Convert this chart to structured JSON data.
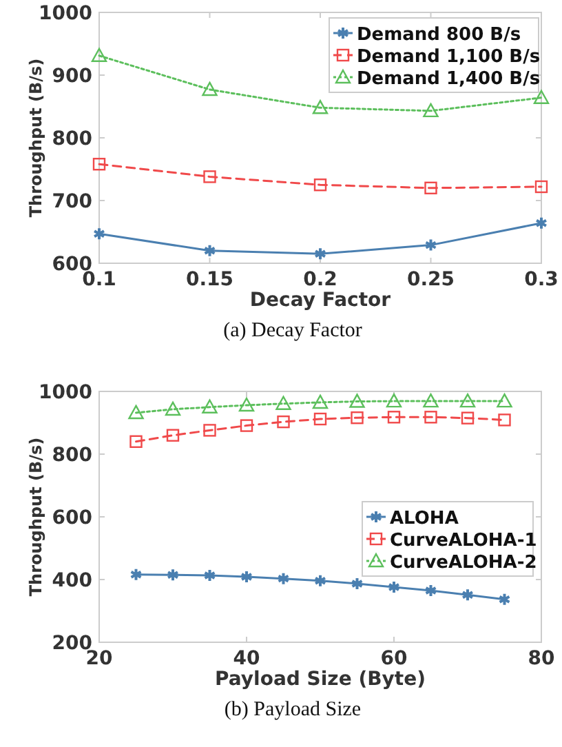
{
  "chart_data": [
    {
      "type": "line",
      "xlabel": "Decay Factor",
      "ylabel": "Throughput (B/s)",
      "x": [
        0.1,
        0.15,
        0.2,
        0.25,
        0.3
      ],
      "xlim": [
        0.1,
        0.3
      ],
      "xticks": [
        0.1,
        0.15,
        0.2,
        0.25,
        0.3
      ],
      "ylim": [
        600,
        1000
      ],
      "yticks": [
        600,
        700,
        800,
        900,
        1000
      ],
      "legend": "top right",
      "annotations": [
        "(a) Decay Factor"
      ],
      "series": [
        {
          "name": "Demand 800 B/s",
          "color": "#4a7fb0",
          "marker": "cross",
          "line_style": "solid",
          "values": [
            647,
            620,
            615,
            629,
            664
          ]
        },
        {
          "name": "Demand 1,100 B/s",
          "color": "#f0494a",
          "marker": "square",
          "line_style": "dashed",
          "values": [
            758,
            738,
            725,
            720,
            722
          ]
        },
        {
          "name": "Demand 1,400 B/s",
          "color": "#5cbf5c",
          "marker": "triangle",
          "line_style": "dotted",
          "values": [
            931,
            877,
            848,
            843,
            864
          ]
        }
      ]
    },
    {
      "type": "line",
      "xlabel": "Payload Size (Byte)",
      "ylabel": "Throughput (B/s)",
      "x": [
        25,
        30,
        35,
        40,
        45,
        50,
        55,
        60,
        65,
        70,
        75
      ],
      "xlim": [
        20,
        80
      ],
      "xticks": [
        20,
        40,
        60,
        80
      ],
      "ylim": [
        200,
        1000
      ],
      "yticks": [
        200,
        400,
        600,
        800,
        1000
      ],
      "legend": "right",
      "annotations": [
        "(b) Payload Size"
      ],
      "series": [
        {
          "name": "ALOHA",
          "color": "#4a7fb0",
          "marker": "cross",
          "line_style": "solid",
          "values": [
            416,
            415,
            413,
            409,
            403,
            396,
            387,
            376,
            365,
            351,
            337
          ]
        },
        {
          "name": "CurveALOHA-1",
          "color": "#f0494a",
          "marker": "square",
          "line_style": "dashed",
          "values": [
            840,
            860,
            876,
            891,
            903,
            912,
            916,
            918,
            918,
            915,
            909
          ]
        },
        {
          "name": "CurveALOHA-2",
          "color": "#5cbf5c",
          "marker": "triangle",
          "line_style": "dotted",
          "values": [
            932,
            943,
            950,
            956,
            961,
            965,
            968,
            969,
            969,
            969,
            969
          ]
        }
      ]
    }
  ]
}
